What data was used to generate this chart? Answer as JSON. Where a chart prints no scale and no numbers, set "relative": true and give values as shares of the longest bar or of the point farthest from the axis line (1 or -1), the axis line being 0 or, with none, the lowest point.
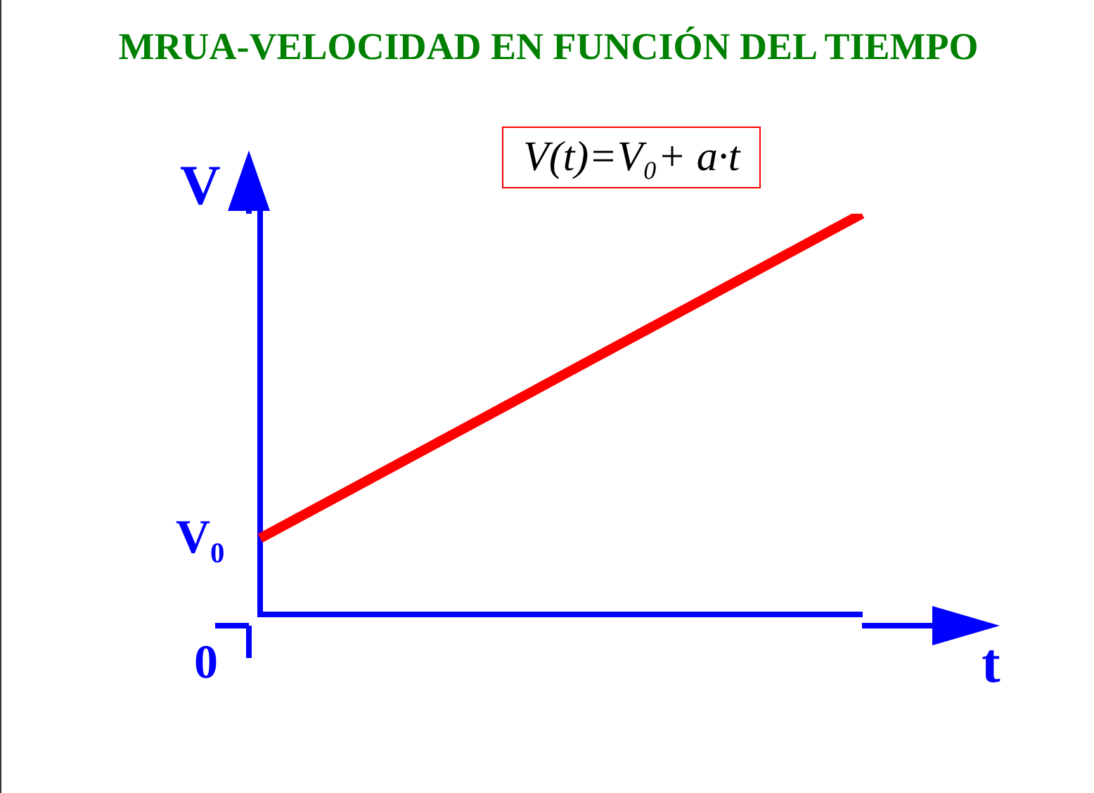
{
  "chart_data": {
    "type": "line",
    "title": "MRUA-VELOCIDAD EN FUNCIÓN DEL TIEMPO",
    "xlabel": "t",
    "ylabel": "V",
    "relative": true,
    "categories": [
      null,
      null
    ],
    "series": [
      {
        "color": "#ff0000",
        "values": [
          0.19,
          1
        ]
      }
    ],
    "annotations": [
      "V₀",
      "0",
      "V(t)=V₀+ a·t"
    ]
  }
}
